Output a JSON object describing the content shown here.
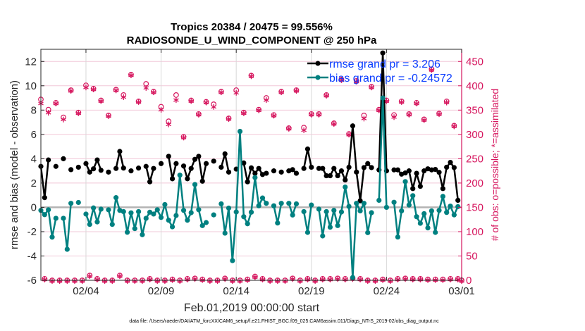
{
  "chart_data": {
    "type": "line",
    "title": [
      "Tropics 20384 / 20475 = 99.556%",
      "RADIOSONDE_U_WIND_COMPONENT @ 250 hPa"
    ],
    "xlabel": "Feb.01,2019 00:00:00 start",
    "ylabel": "rmse and bias (model - observation)",
    "ylabel_right": "# of obs: o=possible; *=assimilated",
    "footnote": "data file: /Users/raeder/DAI/ATM_forcXX/CAM6_setup/f.e21.FHIST_BGC.f09_025.CAM6assim.011/Diags_NTrS_2019-02/obs_diag_output.nc",
    "xlim_days": [
      0,
      28
    ],
    "x_step_days": 0.25,
    "x_ticks": [
      {
        "day": 3,
        "label": "02/04"
      },
      {
        "day": 8,
        "label": "02/09"
      },
      {
        "day": 13,
        "label": "02/14"
      },
      {
        "day": 18,
        "label": "02/19"
      },
      {
        "day": 23,
        "label": "02/24"
      },
      {
        "day": 28,
        "label": "03/01"
      }
    ],
    "ylim": [
      -6,
      13
    ],
    "y_ticks": [
      -6,
      -4,
      -2,
      0,
      2,
      4,
      6,
      8,
      10,
      12
    ],
    "ylim_right": [
      0,
      475
    ],
    "y_ticks_right": [
      0,
      50,
      100,
      150,
      200,
      250,
      300,
      350,
      400,
      450
    ],
    "grid": true,
    "legend_placement": "top-right",
    "colors": {
      "rmse": "#000000",
      "bias": "#008080",
      "obs": "#d6165e",
      "legend_text": "#0a3cff",
      "grid": "#f2c8d8"
    },
    "series": [
      {
        "name": "rmse grand pr = 3.206",
        "key": "rmse",
        "values": [
          3.37,
          0.8,
          3.9,
          null,
          3.37,
          null,
          4.0,
          null,
          3.1,
          null,
          3.3,
          null,
          3.6,
          2.9,
          3.17,
          3.9,
          3.05,
          null,
          2.9,
          null,
          3.2,
          4.6,
          3.23,
          null,
          3.0,
          null,
          3.23,
          null,
          3.37,
          2.1,
          3.2,
          null,
          3.6,
          null,
          4.2,
          2.35,
          3.6,
          null,
          3.4,
          2.35,
          3.2,
          3.95,
          4.2,
          2.15,
          3.6,
          null,
          3.8,
          null,
          3.3,
          4.4,
          2.9,
          null,
          3.15,
          null,
          3.65,
          2.1,
          3.25,
          2.8,
          3.2,
          2.7,
          2.8,
          null,
          3.0,
          null,
          2.9,
          null,
          3.0,
          3.1,
          2.8,
          null,
          3.2,
          4.8,
          3.3,
          null,
          3.2,
          3.2,
          2.6,
          2.6,
          3.2,
          2.6,
          3.0,
          2.25,
          3.3,
          6.7,
          2.9,
          0.54,
          3.27,
          3.6,
          3.27,
          null,
          3.08,
          12.7,
          3.0,
          null,
          3.08,
          3.08,
          2.73,
          2.83,
          3.0,
          1.54,
          2.8,
          1.73,
          3.0,
          3.17,
          3.08,
          3.12,
          2.88,
          1.54,
          3.3,
          3.7,
          3.27,
          0.58,
          null
        ]
      },
      {
        "name": "bias grand pr = -0.24572",
        "key": "bias",
        "values": [
          -0.25,
          -0.6,
          -0.2,
          -2.45,
          -0.9,
          null,
          -0.9,
          -3.45,
          0.33,
          null,
          0.4,
          null,
          -0.55,
          -1.4,
          -0.05,
          -1.2,
          -0.15,
          null,
          -0.2,
          -1.4,
          0.8,
          -0.25,
          -0.35,
          -2.05,
          -0.45,
          -1.75,
          -0.35,
          -2.25,
          -0.9,
          -0.4,
          -0.55,
          -0.2,
          -0.83,
          0.23,
          -1.06,
          -1.6,
          -0.67,
          2.65,
          -0.25,
          -1.06,
          -0.44,
          1.88,
          -0.19,
          -1.5,
          -1.25,
          null,
          -0.62,
          null,
          0.29,
          -2.12,
          -0.06,
          -4.38,
          -0.38,
          6.25,
          -0.77,
          -1.35,
          -0.4,
          2.45,
          0.13,
          0.77,
          0.33,
          null,
          0.13,
          -1.29,
          0.33,
          null,
          0.33,
          -0.63,
          0.29,
          null,
          -0.35,
          -2.06,
          0.19,
          null,
          -0.15,
          -2.35,
          -0.35,
          -1.63,
          -0.25,
          -1.5,
          -0.38,
          1.67,
          0.08,
          -5.77,
          0.33,
          -0.29,
          0.33,
          -2.08,
          -0.44,
          null,
          0.58,
          9.0,
          0.0,
          null,
          0.42,
          -2.44,
          -0.29,
          2.12,
          0.19,
          0.96,
          -0.77,
          -1.31,
          -0.52,
          -1.69,
          -0.29,
          -2.06,
          -0.25,
          0.9,
          -0.42,
          0.1,
          -0.62,
          0.06,
          null
        ]
      },
      {
        "name": "obs possible",
        "key": "possible",
        "axis": "right",
        "values": [
          372,
          3,
          351,
          0,
          365,
          0,
          335,
          0,
          391,
          0,
          345,
          0,
          401,
          10,
          394,
          3,
          370,
          0,
          339,
          0,
          392,
          10,
          381,
          0,
          423,
          0,
          368,
          0,
          404,
          3,
          388,
          0,
          357,
          0,
          327,
          2,
          381,
          0,
          295,
          3,
          370,
          4,
          342,
          2,
          367,
          0,
          362,
          0,
          388,
          4,
          333,
          0,
          391,
          0,
          345,
          2,
          421,
          8,
          351,
          3,
          375,
          0,
          340,
          0,
          388,
          0,
          313,
          4,
          391,
          0,
          314,
          3,
          342,
          0,
          342,
          3,
          381,
          3,
          323,
          4,
          413,
          3,
          301,
          4,
          410,
          3,
          339,
          0,
          398,
          0,
          351,
          2,
          370,
          0,
          340,
          3,
          368,
          4,
          342,
          3,
          365,
          3,
          331,
          2,
          434,
          2,
          343,
          2,
          368,
          3,
          318,
          3,
          0
        ]
      },
      {
        "name": "obs assimilated",
        "key": "assimilated",
        "axis": "right",
        "values": [
          365,
          3,
          346,
          0,
          365,
          0,
          332,
          0,
          391,
          0,
          345,
          0,
          398,
          10,
          394,
          3,
          370,
          0,
          339,
          0,
          392,
          10,
          378,
          0,
          423,
          0,
          368,
          0,
          397,
          3,
          388,
          0,
          352,
          0,
          322,
          2,
          372,
          0,
          295,
          3,
          370,
          4,
          342,
          2,
          367,
          0,
          358,
          0,
          388,
          4,
          333,
          0,
          387,
          0,
          345,
          2,
          421,
          8,
          351,
          3,
          372,
          0,
          340,
          0,
          388,
          0,
          313,
          4,
          391,
          0,
          310,
          3,
          342,
          0,
          342,
          3,
          381,
          3,
          323,
          4,
          413,
          3,
          301,
          4,
          410,
          3,
          334,
          0,
          398,
          0,
          351,
          2,
          370,
          0,
          337,
          3,
          368,
          4,
          342,
          3,
          365,
          3,
          331,
          2,
          434,
          2,
          343,
          2,
          367,
          3,
          318,
          3,
          0
        ]
      }
    ]
  }
}
